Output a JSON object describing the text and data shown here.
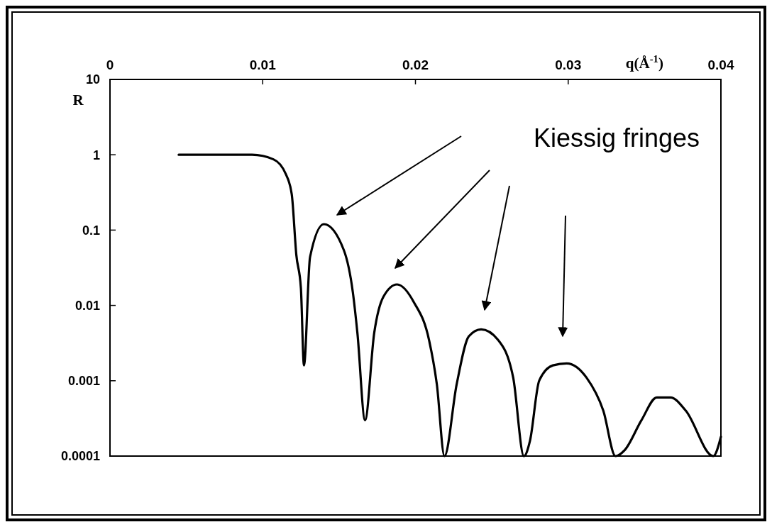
{
  "chart_data": {
    "type": "line",
    "xlabel": "q(Å$^{-1}$)",
    "ylabel": "R",
    "log": "y",
    "xlim": [
      0,
      0.04
    ],
    "xticks": [
      0,
      0.01,
      0.02,
      0.03,
      0.04
    ],
    "ylim": [
      0.0001,
      10
    ],
    "yticks": [
      0.0001,
      0.001,
      0.01,
      0.1,
      1,
      10
    ],
    "grid": false,
    "marker": "none",
    "line_style": "solid",
    "annotations": [
      "Kiessig fringes"
    ],
    "series": [
      {
        "color": "#000000",
        "x": [
          0.0045,
          0.0093,
          0.0107,
          0.0115,
          0.0119,
          0.0122,
          0.0125,
          0.0127,
          0.0131,
          0.014,
          0.0153,
          0.0159,
          0.0162,
          0.0167,
          0.0173,
          0.0179,
          0.0188,
          0.0199,
          0.0209,
          0.0214,
          0.0219,
          0.0227,
          0.0235,
          0.0243,
          0.0254,
          0.0264,
          0.0271,
          0.0275,
          0.0281,
          0.029,
          0.0299,
          0.0312,
          0.0323,
          0.0331,
          0.0337,
          0.0348,
          0.0358,
          0.0367,
          0.0377,
          0.0395,
          0.04
        ],
        "values": [
          1,
          1,
          0.87,
          0.56,
          0.3,
          0.047,
          0.017,
          0.0016,
          0.044,
          0.12,
          0.055,
          0.015,
          0.0043,
          0.0003,
          0.0043,
          0.013,
          0.019,
          0.011,
          0.0034,
          0.0009,
          0.0001,
          0.0009,
          0.0039,
          0.0048,
          0.0035,
          0.0011,
          0.0001,
          0.00016,
          0.001,
          0.0016,
          0.0017,
          0.0011,
          0.0004,
          0.0001,
          0.00012,
          0.0003,
          0.0006,
          0.0006,
          0.0004,
          0.0001,
          0.00018
        ]
      }
    ]
  }
}
